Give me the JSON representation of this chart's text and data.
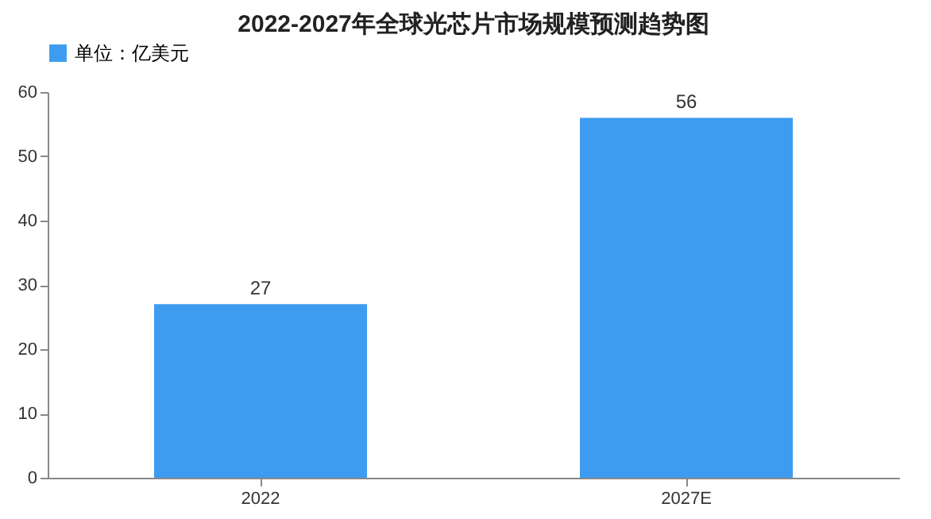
{
  "chart_data": {
    "type": "bar",
    "title": "2022-2027年全球光芯片市场规模预测趋势图",
    "categories": [
      "2022",
      "2027E"
    ],
    "series": [
      {
        "name": "单位：亿美元",
        "color": "#3d9cf0",
        "values": [
          27,
          56
        ]
      }
    ],
    "ylim": [
      0,
      60
    ],
    "yticks": [
      0,
      10,
      20,
      30,
      40,
      50,
      60
    ],
    "grid": false,
    "legend": "top",
    "data_labels": true
  }
}
